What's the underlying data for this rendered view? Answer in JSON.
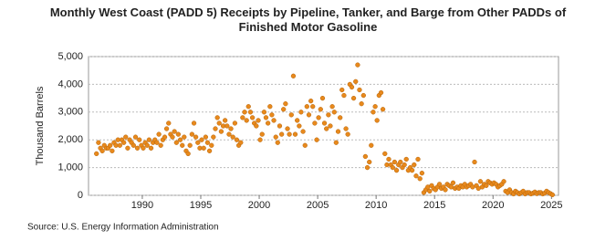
{
  "chart_data": {
    "type": "scatter",
    "title": "Monthly West Coast (PADD 5) Receipts by Pipeline, Tanker, and Barge from Other PADDs of Finished Motor Gasoline",
    "y_label": "Thousand Barrels",
    "source": "Source: U.S. Energy Information Administration",
    "xlim": [
      1985.4,
      2025.6
    ],
    "xticks": [
      1990,
      1995,
      2000,
      2005,
      2010,
      2015,
      2020,
      2025
    ],
    "ylim": [
      0,
      5000
    ],
    "yticks": [
      0,
      {
        "value": 1000,
        "label": "1,000"
      },
      {
        "value": 2000,
        "label": "2,000"
      },
      {
        "value": 3000,
        "label": "3,000"
      },
      {
        "value": 4000,
        "label": "4,000"
      },
      {
        "value": 5000,
        "label": "5,000"
      }
    ],
    "grid": true,
    "x": [
      1986.08,
      1986.25,
      1986.42,
      1986.58,
      1986.75,
      1986.92,
      1987.08,
      1987.25,
      1987.42,
      1987.58,
      1987.75,
      1987.92,
      1988.08,
      1988.25,
      1988.42,
      1988.58,
      1988.75,
      1988.92,
      1989.08,
      1989.25,
      1989.42,
      1989.58,
      1989.75,
      1989.92,
      1990.08,
      1990.25,
      1990.42,
      1990.58,
      1990.75,
      1990.92,
      1991.08,
      1991.25,
      1991.42,
      1991.58,
      1991.75,
      1991.92,
      1992.08,
      1992.25,
      1992.42,
      1992.58,
      1992.75,
      1992.92,
      1993.08,
      1993.25,
      1993.42,
      1993.58,
      1993.75,
      1993.92,
      1994.08,
      1994.25,
      1994.42,
      1994.58,
      1994.75,
      1994.92,
      1995.08,
      1995.25,
      1995.42,
      1995.58,
      1995.75,
      1995.92,
      1996.08,
      1996.25,
      1996.42,
      1996.58,
      1996.75,
      1996.92,
      1997.08,
      1997.25,
      1997.42,
      1997.58,
      1997.75,
      1997.92,
      1998.08,
      1998.25,
      1998.42,
      1998.58,
      1998.75,
      1998.92,
      1999.08,
      1999.25,
      1999.42,
      1999.58,
      1999.75,
      1999.92,
      2000.08,
      2000.25,
      2000.42,
      2000.58,
      2000.75,
      2000.92,
      2001.08,
      2001.25,
      2001.42,
      2001.58,
      2001.75,
      2001.92,
      2002.08,
      2002.25,
      2002.42,
      2002.58,
      2002.75,
      2002.92,
      2003.08,
      2003.25,
      2003.42,
      2003.58,
      2003.75,
      2003.92,
      2004.08,
      2004.25,
      2004.42,
      2004.58,
      2004.75,
      2004.92,
      2005.08,
      2005.25,
      2005.42,
      2005.58,
      2005.75,
      2005.92,
      2006.08,
      2006.25,
      2006.42,
      2006.58,
      2006.75,
      2006.92,
      2007.08,
      2007.25,
      2007.42,
      2007.58,
      2007.75,
      2007.92,
      2008.08,
      2008.25,
      2008.42,
      2008.58,
      2008.75,
      2008.92,
      2009.08,
      2009.25,
      2009.42,
      2009.58,
      2009.75,
      2009.92,
      2010.08,
      2010.25,
      2010.42,
      2010.58,
      2010.75,
      2010.92,
      2011.08,
      2011.25,
      2011.42,
      2011.58,
      2011.75,
      2011.92,
      2012.08,
      2012.25,
      2012.42,
      2012.58,
      2012.75,
      2012.92,
      2013.08,
      2013.25,
      2013.42,
      2013.58,
      2013.75,
      2013.92,
      2014.08,
      2014.25,
      2014.42,
      2014.58,
      2014.75,
      2014.92,
      2015.08,
      2015.25,
      2015.42,
      2015.58,
      2015.75,
      2015.92,
      2016.08,
      2016.25,
      2016.42,
      2016.58,
      2016.75,
      2016.92,
      2017.08,
      2017.25,
      2017.42,
      2017.58,
      2017.75,
      2017.92,
      2018.08,
      2018.25,
      2018.42,
      2018.58,
      2018.75,
      2018.92,
      2019.08,
      2019.25,
      2019.42,
      2019.58,
      2019.75,
      2019.92,
      2020.08,
      2020.25,
      2020.42,
      2020.58,
      2020.75,
      2020.92,
      2021.08,
      2021.25,
      2021.42,
      2021.58,
      2021.75,
      2021.92,
      2022.08,
      2022.25,
      2022.42,
      2022.58,
      2022.75,
      2022.92,
      2023.08,
      2023.25,
      2023.42,
      2023.58,
      2023.75,
      2023.92,
      2024.08,
      2024.25,
      2024.42,
      2024.58,
      2024.75,
      2024.92,
      2025.08
    ],
    "series": [
      {
        "color": "#e8891c",
        "values": [
          1500,
          1900,
          1700,
          1600,
          1800,
          1700,
          1700,
          1800,
          1600,
          1900,
          1800,
          2000,
          1800,
          2000,
          1900,
          2100,
          1700,
          2000,
          1900,
          1800,
          2100,
          1700,
          2000,
          1800,
          1700,
          1900,
          1800,
          2000,
          1700,
          1900,
          2000,
          1900,
          2200,
          1800,
          2000,
          2100,
          2400,
          2600,
          2200,
          2100,
          2300,
          1900,
          2200,
          2000,
          1800,
          2100,
          1600,
          1500,
          1800,
          2200,
          2600,
          2100,
          1900,
          1700,
          2000,
          1700,
          2100,
          1900,
          1600,
          1800,
          2100,
          2400,
          2800,
          2600,
          2300,
          2500,
          2700,
          2500,
          2200,
          2400,
          2100,
          2600,
          2000,
          1800,
          1900,
          2800,
          3000,
          2700,
          3200,
          3000,
          2800,
          2600,
          2500,
          2700,
          2000,
          2200,
          3000,
          2800,
          2600,
          3200,
          2900,
          2700,
          2100,
          1900,
          2500,
          2200,
          3100,
          3300,
          2400,
          2200,
          2900,
          4300,
          2200,
          2700,
          2500,
          3000,
          2300,
          1800,
          3200,
          2900,
          3400,
          3200,
          2600,
          2000,
          2800,
          3100,
          3500,
          2600,
          2400,
          2900,
          2500,
          3200,
          3000,
          1900,
          2300,
          2800,
          3800,
          3600,
          2400,
          2200,
          4000,
          3900,
          3500,
          4100,
          4700,
          3800,
          3300,
          3600,
          1400,
          1000,
          1200,
          1800,
          3000,
          3200,
          2700,
          3600,
          3700,
          3100,
          1500,
          1100,
          1300,
          1100,
          1000,
          1200,
          900,
          1100,
          1200,
          1000,
          1100,
          1300,
          900,
          1000,
          900,
          1100,
          700,
          1300,
          600,
          800,
          100,
          200,
          300,
          150,
          350,
          250,
          200,
          300,
          400,
          250,
          300,
          200,
          400,
          350,
          300,
          450,
          250,
          300,
          250,
          350,
          300,
          400,
          300,
          350,
          400,
          300,
          1200,
          350,
          250,
          500,
          300,
          400,
          350,
          500,
          450,
          400,
          450,
          400,
          300,
          350,
          400,
          500,
          150,
          100,
          200,
          100,
          50,
          150,
          100,
          50,
          100,
          150,
          50,
          100,
          100,
          50,
          80,
          120,
          60,
          100,
          100,
          50,
          80,
          150,
          100,
          60,
          20
        ]
      }
    ]
  }
}
